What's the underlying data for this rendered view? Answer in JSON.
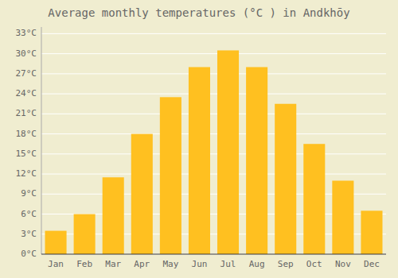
{
  "chart_data": {
    "type": "bar",
    "title": "Average monthly temperatures (°C ) in Andkhōy",
    "categories": [
      "Jan",
      "Feb",
      "Mar",
      "Apr",
      "May",
      "Jun",
      "Jul",
      "Aug",
      "Sep",
      "Oct",
      "Nov",
      "Dec"
    ],
    "values": [
      3.5,
      6.0,
      11.5,
      18.0,
      23.5,
      28.0,
      30.5,
      28.0,
      22.5,
      16.5,
      11.0,
      6.5
    ],
    "color": "#FFC020",
    "ylim": [
      0,
      34
    ],
    "yticks": [
      {
        "value": 0,
        "label": "0°C"
      },
      {
        "value": 3,
        "label": "3°C"
      },
      {
        "value": 6,
        "label": "6°C"
      },
      {
        "value": 9,
        "label": "9°C"
      },
      {
        "value": 12,
        "label": "12°C"
      },
      {
        "value": 15,
        "label": "15°C"
      },
      {
        "value": 18,
        "label": "18°C"
      },
      {
        "value": 21,
        "label": "21°C"
      },
      {
        "value": 24,
        "label": "24°C"
      },
      {
        "value": 27,
        "label": "27°C"
      },
      {
        "value": 30,
        "label": "30°C"
      },
      {
        "value": 33,
        "label": "33°C"
      }
    ],
    "grid": true
  }
}
